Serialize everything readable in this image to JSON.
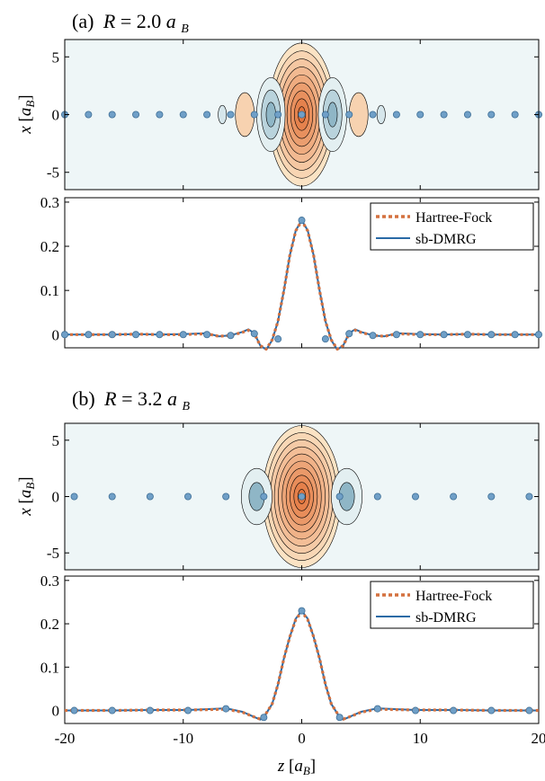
{
  "colors": {
    "hartree_fock": "#d4713f",
    "dmrg": "#2a6aa6",
    "atom_fill": "#6f9fc7",
    "atom_stroke": "#3f6f96",
    "background_map": "#eef6f7",
    "positive_light": "#fbe3c4",
    "positive_dark": "#e2743c",
    "negative_light": "#e3eff1",
    "negative_dark": "#8fb6c6"
  },
  "legend": {
    "hartree_fock": "Hartree-Fock",
    "dmrg": "sb-DMRG"
  },
  "chart_data": [
    {
      "type": "heatmap",
      "title": "(a) R = 2.0a_B",
      "title_parts": {
        "tag": "(a)",
        "var": "R",
        "eq": " = 2.0",
        "unit": "a",
        "unit_sub": "B"
      },
      "ylabel": "x [a_B]",
      "ylabel_parts": {
        "var": "x",
        "open": " [",
        "unit": "a",
        "unit_sub": "B",
        "close": "]"
      },
      "xlim": [
        -20,
        20
      ],
      "ylim": [
        -6.5,
        6.5
      ],
      "yticks": [
        "5",
        "0",
        "-5"
      ],
      "ytick_values": [
        5,
        0,
        -5
      ],
      "atoms_z": [
        -20,
        -18,
        -16,
        -14,
        -12,
        -10,
        -8,
        -6,
        -4,
        -2,
        0,
        2,
        4,
        6,
        8,
        10,
        12,
        14,
        16,
        18,
        20
      ],
      "lobes": [
        {
          "z": 0,
          "sign": 1,
          "rz": 2.8,
          "rx": 6.2,
          "levels": 9
        },
        {
          "z": -2.6,
          "sign": -1,
          "rz": 1.2,
          "rx": 3.2,
          "levels": 3
        },
        {
          "z": 2.6,
          "sign": -1,
          "rz": 1.2,
          "rx": 3.2,
          "levels": 3
        },
        {
          "z": -4.8,
          "sign": 1,
          "rz": 0.8,
          "rx": 1.9,
          "levels": 1
        },
        {
          "z": 4.8,
          "sign": 1,
          "rz": 0.8,
          "rx": 1.9,
          "levels": 1
        },
        {
          "z": -6.7,
          "sign": -1,
          "rz": 0.35,
          "rx": 0.8,
          "levels": 1
        },
        {
          "z": 6.7,
          "sign": -1,
          "rz": 0.35,
          "rx": 0.8,
          "levels": 1
        }
      ]
    },
    {
      "type": "line",
      "xlim": [
        -20,
        20
      ],
      "ylim": [
        -0.03,
        0.31
      ],
      "yticks": [
        "0.3",
        "0.2",
        "0.1",
        "0"
      ],
      "ytick_values": [
        0.3,
        0.2,
        0.1,
        0
      ],
      "series": [
        {
          "name": "Hartree-Fock",
          "x": [
            -20,
            -18,
            -16,
            -14,
            -12,
            -10,
            -8,
            -7,
            -6,
            -5,
            -4.5,
            -4,
            -3.5,
            -3,
            -2.5,
            -2,
            -1.5,
            -1,
            -0.5,
            0,
            0.5,
            1,
            1.5,
            2,
            2.5,
            3,
            3.5,
            4,
            4.5,
            5,
            6,
            7,
            8,
            10,
            12,
            14,
            16,
            18,
            20
          ],
          "y": [
            0,
            0,
            0,
            0.001,
            0,
            0,
            0.002,
            -0.004,
            -0.002,
            0.005,
            0.01,
            0.002,
            -0.025,
            -0.033,
            -0.012,
            0.03,
            0.1,
            0.18,
            0.235,
            0.258,
            0.235,
            0.18,
            0.1,
            0.03,
            -0.012,
            -0.033,
            -0.025,
            0.002,
            0.01,
            0.005,
            -0.002,
            -0.004,
            0.002,
            0,
            0,
            0.001,
            0,
            0,
            0
          ]
        },
        {
          "name": "sb-DMRG",
          "x": [
            -20,
            -18,
            -16,
            -14,
            -12,
            -10,
            -8,
            -7,
            -6,
            -5,
            -4.5,
            -4,
            -3.5,
            -3,
            -2.5,
            -2,
            -1.5,
            -1,
            -0.5,
            0,
            0.5,
            1,
            1.5,
            2,
            2.5,
            3,
            3.5,
            4,
            4.5,
            5,
            6,
            7,
            8,
            10,
            12,
            14,
            16,
            18,
            20
          ],
          "y": [
            0,
            0,
            0,
            0.001,
            0,
            0.001,
            0.003,
            -0.004,
            -0.002,
            0.006,
            0.012,
            0.003,
            -0.025,
            -0.034,
            -0.013,
            0.03,
            0.1,
            0.18,
            0.236,
            0.259,
            0.236,
            0.18,
            0.1,
            0.03,
            -0.013,
            -0.034,
            -0.025,
            0.003,
            0.012,
            0.006,
            -0.002,
            -0.004,
            0.003,
            0.001,
            0,
            0.001,
            0,
            0,
            0
          ]
        }
      ],
      "markers_x": [
        -20,
        -18,
        -16,
        -14,
        -12,
        -10,
        -8,
        -6,
        -4,
        -2,
        0,
        2,
        4,
        6,
        8,
        10,
        12,
        14,
        16,
        18,
        20
      ],
      "markers_y": [
        0,
        0,
        0,
        0,
        0,
        0,
        0,
        -0.002,
        0.002,
        -0.01,
        0.259,
        -0.01,
        0.002,
        -0.002,
        0,
        0,
        0,
        0,
        0,
        0,
        0
      ]
    },
    {
      "type": "heatmap",
      "title": "(b) R = 3.2a_B",
      "title_parts": {
        "tag": "(b)",
        "var": "R",
        "eq": " = 3.2",
        "unit": "a",
        "unit_sub": "B"
      },
      "ylabel": "x [a_B]",
      "ylabel_parts": {
        "var": "x",
        "open": " [",
        "unit": "a",
        "unit_sub": "B",
        "close": "]"
      },
      "xlim": [
        -20,
        20
      ],
      "ylim": [
        -6.5,
        6.5
      ],
      "yticks": [
        "5",
        "0",
        "-5"
      ],
      "ytick_values": [
        5,
        0,
        -5
      ],
      "atoms_z": [
        -19.2,
        -16,
        -12.8,
        -9.6,
        -6.4,
        -3.2,
        0,
        3.2,
        6.4,
        9.6,
        12.8,
        16,
        19.2
      ],
      "lobes": [
        {
          "z": 0,
          "sign": 1,
          "rz": 3.3,
          "rx": 6.3,
          "levels": 10
        },
        {
          "z": -3.8,
          "sign": -1,
          "rz": 1.3,
          "rx": 2.5,
          "levels": 2
        },
        {
          "z": 3.8,
          "sign": -1,
          "rz": 1.3,
          "rx": 2.5,
          "levels": 2
        }
      ]
    },
    {
      "type": "line",
      "xlim": [
        -20,
        20
      ],
      "ylim": [
        -0.03,
        0.31
      ],
      "yticks": [
        "0.3",
        "0.2",
        "0.1",
        "0"
      ],
      "ytick_values": [
        0.3,
        0.2,
        0.1,
        0
      ],
      "xticks": [
        "-20",
        "-10",
        "0",
        "10",
        "20"
      ],
      "xtick_values": [
        -20,
        -10,
        0,
        10,
        20
      ],
      "xlabel": "z [a_B]",
      "xlabel_parts": {
        "var": "z",
        "open": " [",
        "unit": "a",
        "unit_sub": "B",
        "close": "]"
      },
      "series": [
        {
          "name": "Hartree-Fock",
          "x": [
            -20,
            -16,
            -12.8,
            -9.6,
            -8,
            -6.4,
            -5,
            -4,
            -3.5,
            -3.2,
            -2.5,
            -2,
            -1.5,
            -1,
            -0.5,
            0,
            0.5,
            1,
            1.5,
            2,
            2.5,
            3.2,
            3.5,
            4,
            5,
            6.4,
            8,
            9.6,
            12.8,
            16,
            20
          ],
          "y": [
            0,
            0,
            0.001,
            0.001,
            0.002,
            0.003,
            -0.004,
            -0.015,
            -0.02,
            -0.015,
            0.015,
            0.06,
            0.12,
            0.17,
            0.21,
            0.228,
            0.21,
            0.17,
            0.12,
            0.06,
            0.015,
            -0.015,
            -0.02,
            -0.015,
            -0.004,
            0.003,
            0.002,
            0.001,
            0.001,
            0,
            0
          ]
        },
        {
          "name": "sb-DMRG",
          "x": [
            -20,
            -16,
            -12.8,
            -9.6,
            -8,
            -6.4,
            -5,
            -4,
            -3.5,
            -3.2,
            -2.5,
            -2,
            -1.5,
            -1,
            -0.5,
            0,
            0.5,
            1,
            1.5,
            2,
            2.5,
            3.2,
            3.5,
            4,
            5,
            6.4,
            8,
            9.6,
            12.8,
            16,
            20
          ],
          "y": [
            0,
            0,
            0.001,
            0.001,
            0.003,
            0.005,
            -0.003,
            -0.015,
            -0.021,
            -0.016,
            0.015,
            0.06,
            0.12,
            0.17,
            0.212,
            0.23,
            0.212,
            0.17,
            0.12,
            0.06,
            0.015,
            -0.016,
            -0.021,
            -0.015,
            -0.003,
            0.005,
            0.003,
            0.001,
            0.001,
            0,
            0
          ]
        }
      ],
      "markers_x": [
        -19.2,
        -16,
        -12.8,
        -9.6,
        -6.4,
        -3.2,
        0,
        3.2,
        6.4,
        9.6,
        12.8,
        16,
        19.2
      ],
      "markers_y": [
        0,
        0,
        0,
        0,
        0.004,
        -0.016,
        0.23,
        -0.016,
        0.004,
        0,
        0,
        0,
        0
      ]
    }
  ]
}
